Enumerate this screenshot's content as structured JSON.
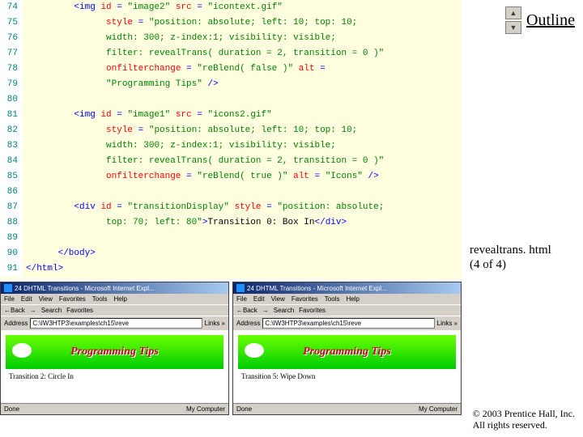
{
  "outline": {
    "label": "Outline"
  },
  "caption": {
    "line1": "revealtrans. html",
    "line2": "(4 of 4)"
  },
  "copyright": {
    "line1": "© 2003 Prentice Hall, Inc.",
    "line2": "All rights reserved."
  },
  "code": {
    "lines": [
      {
        "num": "74",
        "indent": 3,
        "parts": [
          [
            "tag",
            "<img "
          ],
          [
            "attr",
            "id "
          ],
          [
            "tag",
            "= "
          ],
          [
            "str",
            "\"image2\" "
          ],
          [
            "attr",
            "src "
          ],
          [
            "tag",
            "= "
          ],
          [
            "str",
            "\"icontext.gif\""
          ]
        ]
      },
      {
        "num": "75",
        "indent": 5,
        "parts": [
          [
            "attr",
            "style "
          ],
          [
            "tag",
            "= "
          ],
          [
            "str",
            "\"position: absolute; left: 10; top: 10;"
          ]
        ]
      },
      {
        "num": "76",
        "indent": 5,
        "parts": [
          [
            "str",
            "width: 300; z-index:1; visibility: visible;"
          ]
        ]
      },
      {
        "num": "77",
        "indent": 5,
        "parts": [
          [
            "str",
            "filter: revealTrans( duration = 2, transition = 0 )\""
          ]
        ]
      },
      {
        "num": "78",
        "indent": 5,
        "parts": [
          [
            "attr",
            "onfilterchange "
          ],
          [
            "tag",
            "= "
          ],
          [
            "str",
            "\"reBlend( false )\" "
          ],
          [
            "attr",
            "alt "
          ],
          [
            "tag",
            "="
          ]
        ]
      },
      {
        "num": "79",
        "indent": 5,
        "parts": [
          [
            "str",
            "\"Programming Tips\" "
          ],
          [
            "tag",
            "/>"
          ]
        ]
      },
      {
        "num": "80",
        "indent": 0,
        "parts": []
      },
      {
        "num": "81",
        "indent": 3,
        "parts": [
          [
            "tag",
            "<img "
          ],
          [
            "attr",
            "id "
          ],
          [
            "tag",
            "= "
          ],
          [
            "str",
            "\"image1\" "
          ],
          [
            "attr",
            "src "
          ],
          [
            "tag",
            "= "
          ],
          [
            "str",
            "\"icons2.gif\""
          ]
        ]
      },
      {
        "num": "82",
        "indent": 5,
        "parts": [
          [
            "attr",
            "style "
          ],
          [
            "tag",
            "= "
          ],
          [
            "str",
            "\"position: absolute; left: 10; top: 10;"
          ]
        ]
      },
      {
        "num": "83",
        "indent": 5,
        "parts": [
          [
            "str",
            "width: 300; z-index:1; visibility: visible;"
          ]
        ]
      },
      {
        "num": "84",
        "indent": 5,
        "parts": [
          [
            "str",
            "filter: revealTrans( duration = 2, transition = 0 )\""
          ]
        ]
      },
      {
        "num": "85",
        "indent": 5,
        "parts": [
          [
            "attr",
            "onfilterchange "
          ],
          [
            "tag",
            "= "
          ],
          [
            "str",
            "\"reBlend( true )\" "
          ],
          [
            "attr",
            "alt "
          ],
          [
            "tag",
            "= "
          ],
          [
            "str",
            "\"Icons\" "
          ],
          [
            "tag",
            "/>"
          ]
        ]
      },
      {
        "num": "86",
        "indent": 0,
        "parts": []
      },
      {
        "num": "87",
        "indent": 3,
        "parts": [
          [
            "tag",
            "<div "
          ],
          [
            "attr",
            "id "
          ],
          [
            "tag",
            "= "
          ],
          [
            "str",
            "\"transitionDisplay\" "
          ],
          [
            "attr",
            "style "
          ],
          [
            "tag",
            "= "
          ],
          [
            "str",
            "\"position: absolute;"
          ]
        ]
      },
      {
        "num": "88",
        "indent": 5,
        "parts": [
          [
            "str",
            "top: 70; left: 80\""
          ],
          [
            "tag",
            ">"
          ],
          [
            "txt",
            "Transition 0: Box In"
          ],
          [
            "tag",
            "</div>"
          ]
        ]
      },
      {
        "num": "89",
        "indent": 0,
        "parts": []
      },
      {
        "num": "90",
        "indent": 2,
        "parts": [
          [
            "tag",
            "</body>"
          ]
        ]
      },
      {
        "num": "91",
        "indent": 0,
        "parts": [
          [
            "tag",
            "</html>"
          ]
        ]
      }
    ]
  },
  "browser": {
    "title": "24 DHTML Transitions - Microsoft Internet Expl...",
    "menus": [
      "File",
      "Edit",
      "View",
      "Favorites",
      "Tools",
      "Help"
    ],
    "toolbar": [
      "←Back",
      "→",
      "Search",
      "Favorites"
    ],
    "addr_label": "Address",
    "addr_value": "C:\\IW3HTP3\\examples\\ch15\\reve",
    "links_label": "Links »",
    "status_done": "Done",
    "status_zone": "My Computer",
    "left": {
      "banner_text": "Programming Tips",
      "transition": "Transition 2: Circle In"
    },
    "right": {
      "banner_text": "Programming Tips",
      "transition": "Transition 5: Wipe Down"
    }
  }
}
